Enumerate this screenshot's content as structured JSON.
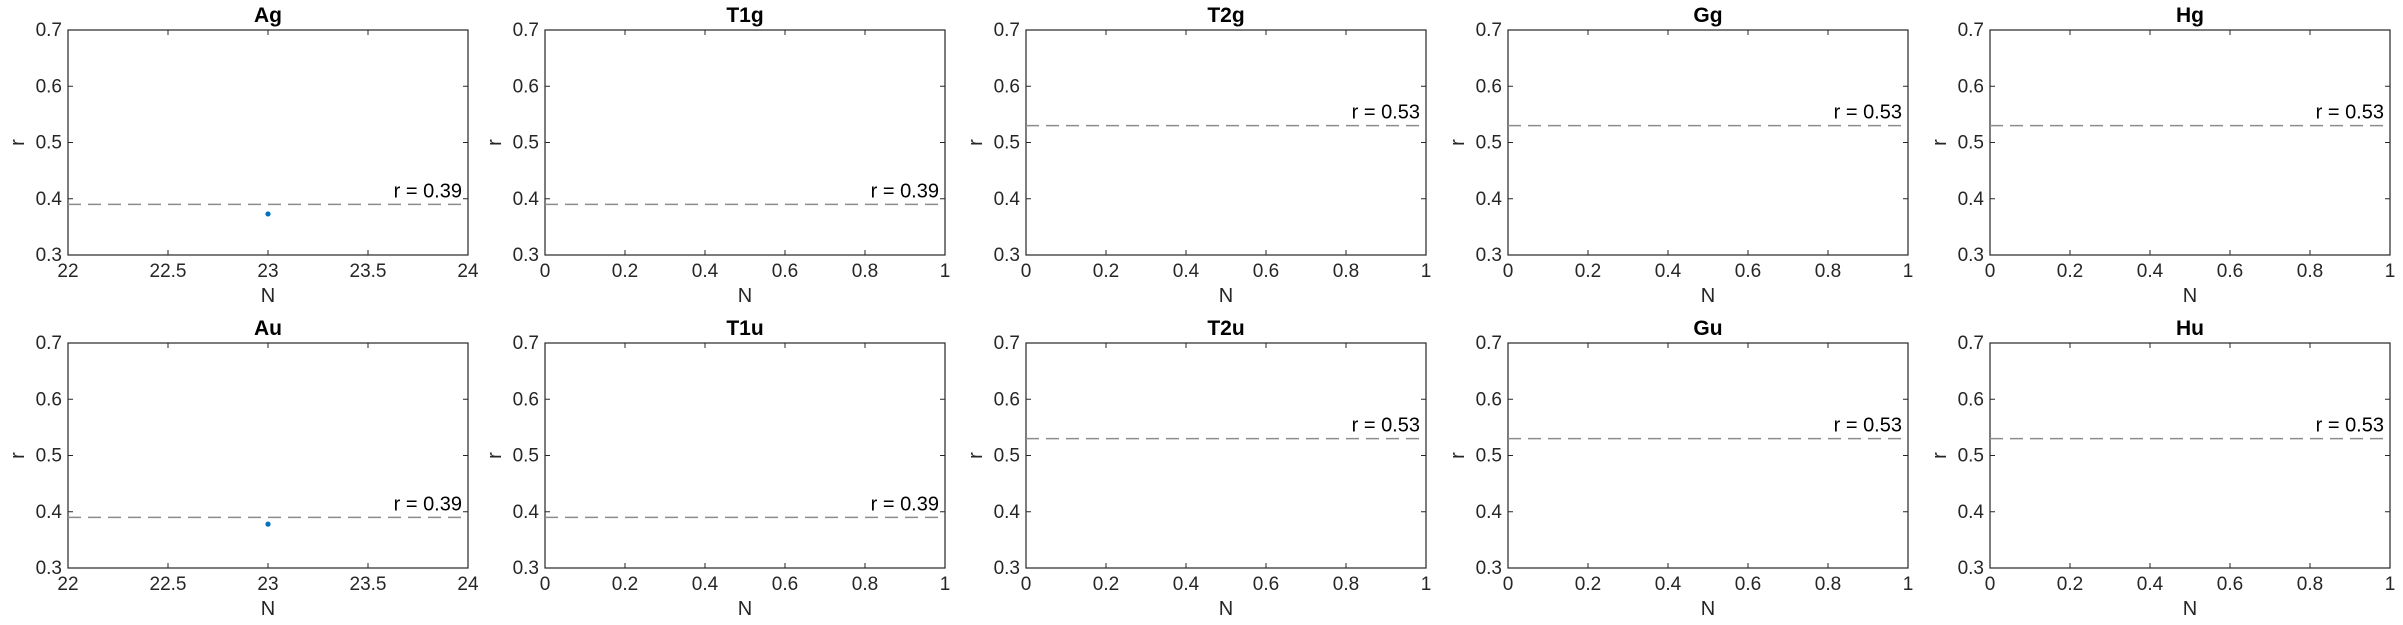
{
  "chart_data": [
    {
      "type": "scatter",
      "title": "Ag",
      "xlabel": "N",
      "ylabel": "r",
      "xlim": [
        22,
        24
      ],
      "ylim": [
        0.3,
        0.7
      ],
      "xticks": [
        "22",
        "22.5",
        "23",
        "23.5",
        "24"
      ],
      "yticks": [
        "0.3",
        "0.4",
        "0.5",
        "0.6",
        "0.7"
      ],
      "points": [
        {
          "x": 23,
          "y": 0.373
        }
      ],
      "ref_line": 0.39,
      "ref_label": "r = 0.39",
      "grid": false
    },
    {
      "type": "scatter",
      "title": "T1g",
      "xlabel": "N",
      "ylabel": "r",
      "xlim": [
        0,
        1
      ],
      "ylim": [
        0.3,
        0.7
      ],
      "xticks": [
        "0",
        "0.2",
        "0.4",
        "0.6",
        "0.8",
        "1"
      ],
      "yticks": [
        "0.3",
        "0.4",
        "0.5",
        "0.6",
        "0.7"
      ],
      "points": [],
      "ref_line": 0.39,
      "ref_label": "r = 0.39",
      "grid": false
    },
    {
      "type": "scatter",
      "title": "T2g",
      "xlabel": "N",
      "ylabel": "r",
      "xlim": [
        0,
        1
      ],
      "ylim": [
        0.3,
        0.7
      ],
      "xticks": [
        "0",
        "0.2",
        "0.4",
        "0.6",
        "0.8",
        "1"
      ],
      "yticks": [
        "0.3",
        "0.4",
        "0.5",
        "0.6",
        "0.7"
      ],
      "points": [],
      "ref_line": 0.53,
      "ref_label": "r = 0.53",
      "grid": false
    },
    {
      "type": "scatter",
      "title": "Gg",
      "xlabel": "N",
      "ylabel": "r",
      "xlim": [
        0,
        1
      ],
      "ylim": [
        0.3,
        0.7
      ],
      "xticks": [
        "0",
        "0.2",
        "0.4",
        "0.6",
        "0.8",
        "1"
      ],
      "yticks": [
        "0.3",
        "0.4",
        "0.5",
        "0.6",
        "0.7"
      ],
      "points": [],
      "ref_line": 0.53,
      "ref_label": "r = 0.53",
      "grid": false
    },
    {
      "type": "scatter",
      "title": "Hg",
      "xlabel": "N",
      "ylabel": "r",
      "xlim": [
        0,
        1
      ],
      "ylim": [
        0.3,
        0.7
      ],
      "xticks": [
        "0",
        "0.2",
        "0.4",
        "0.6",
        "0.8",
        "1"
      ],
      "yticks": [
        "0.3",
        "0.4",
        "0.5",
        "0.6",
        "0.7"
      ],
      "points": [],
      "ref_line": 0.53,
      "ref_label": "r = 0.53",
      "grid": false
    },
    {
      "type": "scatter",
      "title": "Au",
      "xlabel": "N",
      "ylabel": "r",
      "xlim": [
        22,
        24
      ],
      "ylim": [
        0.3,
        0.7
      ],
      "xticks": [
        "22",
        "22.5",
        "23",
        "23.5",
        "24"
      ],
      "yticks": [
        "0.3",
        "0.4",
        "0.5",
        "0.6",
        "0.7"
      ],
      "points": [
        {
          "x": 23,
          "y": 0.378
        }
      ],
      "ref_line": 0.39,
      "ref_label": "r = 0.39",
      "grid": false
    },
    {
      "type": "scatter",
      "title": "T1u",
      "xlabel": "N",
      "ylabel": "r",
      "xlim": [
        0,
        1
      ],
      "ylim": [
        0.3,
        0.7
      ],
      "xticks": [
        "0",
        "0.2",
        "0.4",
        "0.6",
        "0.8",
        "1"
      ],
      "yticks": [
        "0.3",
        "0.4",
        "0.5",
        "0.6",
        "0.7"
      ],
      "points": [],
      "ref_line": 0.39,
      "ref_label": "r = 0.39",
      "grid": false
    },
    {
      "type": "scatter",
      "title": "T2u",
      "xlabel": "N",
      "ylabel": "r",
      "xlim": [
        0,
        1
      ],
      "ylim": [
        0.3,
        0.7
      ],
      "xticks": [
        "0",
        "0.2",
        "0.4",
        "0.6",
        "0.8",
        "1"
      ],
      "yticks": [
        "0.3",
        "0.4",
        "0.5",
        "0.6",
        "0.7"
      ],
      "points": [],
      "ref_line": 0.53,
      "ref_label": "r = 0.53",
      "grid": false
    },
    {
      "type": "scatter",
      "title": "Gu",
      "xlabel": "N",
      "ylabel": "r",
      "xlim": [
        0,
        1
      ],
      "ylim": [
        0.3,
        0.7
      ],
      "xticks": [
        "0",
        "0.2",
        "0.4",
        "0.6",
        "0.8",
        "1"
      ],
      "yticks": [
        "0.3",
        "0.4",
        "0.5",
        "0.6",
        "0.7"
      ],
      "points": [],
      "ref_line": 0.53,
      "ref_label": "r = 0.53",
      "grid": false
    },
    {
      "type": "scatter",
      "title": "Hu",
      "xlabel": "N",
      "ylabel": "r",
      "xlim": [
        0,
        1
      ],
      "ylim": [
        0.3,
        0.7
      ],
      "xticks": [
        "0",
        "0.2",
        "0.4",
        "0.6",
        "0.8",
        "1"
      ],
      "yticks": [
        "0.3",
        "0.4",
        "0.5",
        "0.6",
        "0.7"
      ],
      "points": [],
      "ref_line": 0.53,
      "ref_label": "r = 0.53",
      "grid": false
    }
  ],
  "colors": {
    "marker": "#0072BD",
    "ref_line": "#8c8c8c",
    "axes": "#262626"
  }
}
